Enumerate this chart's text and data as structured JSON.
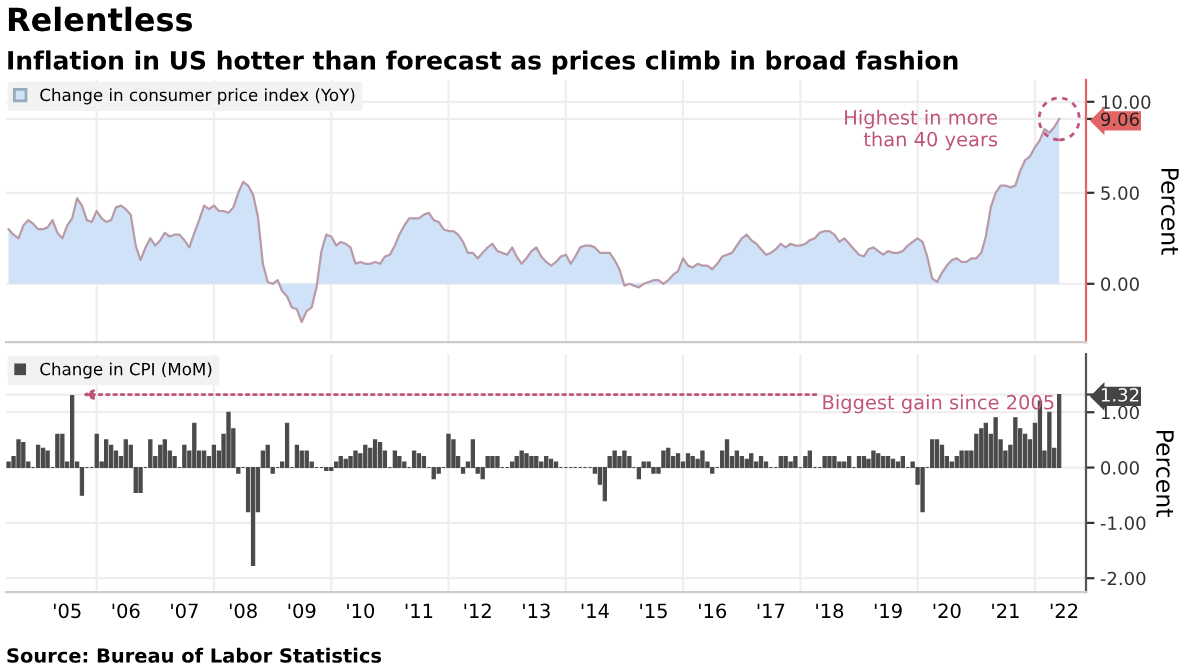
{
  "chart_data": [
    {
      "type": "area",
      "title": "Relentless",
      "subtitle": "Inflation in US hotter than forecast as prices climb in broad fashion",
      "ylabel": "Percent",
      "legend": "top left",
      "grid": true,
      "tick_labels": "y",
      "xlim": [
        "2004-06-15",
        "2022-11-15"
      ],
      "ylim": [
        -3.2,
        11.2
      ],
      "yticks": [
        {
          "value": 0,
          "label": "0.00"
        },
        {
          "value": 5,
          "label": "5.00"
        },
        {
          "value": 10,
          "label": "10.00"
        },
        {
          "value": 9.06,
          "label": "9.06"
        }
      ],
      "xticks": [
        {
          "value": "2006-01",
          "label": null
        },
        {
          "value": "2008-01",
          "label": null
        },
        {
          "value": "2010-01",
          "label": null
        },
        {
          "value": "2012-01",
          "label": null
        },
        {
          "value": "2014-01",
          "label": null
        },
        {
          "value": "2016-01",
          "label": null
        },
        {
          "value": "2018-01",
          "label": null
        },
        {
          "value": "2020-01",
          "label": null
        },
        {
          "value": "2022-01",
          "label": null
        }
      ],
      "annotations": [
        "Highest in more than 40 years"
      ],
      "series": [
        {
          "name": "Change in consumer price index (YoY)",
          "color": "#cfe2f8",
          "x": [
            "2004-07",
            "2004-08",
            "2004-09",
            "2004-10",
            "2004-11",
            "2004-12",
            "2005-01",
            "2005-02",
            "2005-03",
            "2005-04",
            "2005-05",
            "2005-06",
            "2005-07",
            "2005-08",
            "2005-09",
            "2005-10",
            "2005-11",
            "2005-12",
            "2006-01",
            "2006-02",
            "2006-03",
            "2006-04",
            "2006-05",
            "2006-06",
            "2006-07",
            "2006-08",
            "2006-09",
            "2006-10",
            "2006-11",
            "2006-12",
            "2007-01",
            "2007-02",
            "2007-03",
            "2007-04",
            "2007-05",
            "2007-06",
            "2007-07",
            "2007-08",
            "2007-09",
            "2007-10",
            "2007-11",
            "2007-12",
            "2008-01",
            "2008-02",
            "2008-03",
            "2008-04",
            "2008-05",
            "2008-06",
            "2008-07",
            "2008-08",
            "2008-09",
            "2008-10",
            "2008-11",
            "2008-12",
            "2009-01",
            "2009-02",
            "2009-03",
            "2009-04",
            "2009-05",
            "2009-06",
            "2009-07",
            "2009-08",
            "2009-09",
            "2009-10",
            "2009-11",
            "2009-12",
            "2010-01",
            "2010-02",
            "2010-03",
            "2010-04",
            "2010-05",
            "2010-06",
            "2010-07",
            "2010-08",
            "2010-09",
            "2010-10",
            "2010-11",
            "2010-12",
            "2011-01",
            "2011-02",
            "2011-03",
            "2011-04",
            "2011-05",
            "2011-06",
            "2011-07",
            "2011-08",
            "2011-09",
            "2011-10",
            "2011-11",
            "2011-12",
            "2012-01",
            "2012-02",
            "2012-03",
            "2012-04",
            "2012-05",
            "2012-06",
            "2012-07",
            "2012-08",
            "2012-09",
            "2012-10",
            "2012-11",
            "2012-12",
            "2013-01",
            "2013-02",
            "2013-03",
            "2013-04",
            "2013-05",
            "2013-06",
            "2013-07",
            "2013-08",
            "2013-09",
            "2013-10",
            "2013-11",
            "2013-12",
            "2014-01",
            "2014-02",
            "2014-03",
            "2014-04",
            "2014-05",
            "2014-06",
            "2014-07",
            "2014-08",
            "2014-09",
            "2014-10",
            "2014-11",
            "2014-12",
            "2015-01",
            "2015-02",
            "2015-03",
            "2015-04",
            "2015-05",
            "2015-06",
            "2015-07",
            "2015-08",
            "2015-09",
            "2015-10",
            "2015-11",
            "2015-12",
            "2016-01",
            "2016-02",
            "2016-03",
            "2016-04",
            "2016-05",
            "2016-06",
            "2016-07",
            "2016-08",
            "2016-09",
            "2016-10",
            "2016-11",
            "2016-12",
            "2017-01",
            "2017-02",
            "2017-03",
            "2017-04",
            "2017-05",
            "2017-06",
            "2017-07",
            "2017-08",
            "2017-09",
            "2017-10",
            "2017-11",
            "2017-12",
            "2018-01",
            "2018-02",
            "2018-03",
            "2018-04",
            "2018-05",
            "2018-06",
            "2018-07",
            "2018-08",
            "2018-09",
            "2018-10",
            "2018-11",
            "2018-12",
            "2019-01",
            "2019-02",
            "2019-03",
            "2019-04",
            "2019-05",
            "2019-06",
            "2019-07",
            "2019-08",
            "2019-09",
            "2019-10",
            "2019-11",
            "2019-12",
            "2020-01",
            "2020-02",
            "2020-03",
            "2020-04",
            "2020-05",
            "2020-06",
            "2020-07",
            "2020-08",
            "2020-09",
            "2020-10",
            "2020-11",
            "2020-12",
            "2021-01",
            "2021-02",
            "2021-03",
            "2021-04",
            "2021-05",
            "2021-06",
            "2021-07",
            "2021-08",
            "2021-09",
            "2021-10",
            "2021-11",
            "2021-12",
            "2022-01",
            "2022-02",
            "2022-03",
            "2022-04",
            "2022-05",
            "2022-06"
          ],
          "values": [
            3.0,
            2.7,
            2.5,
            3.2,
            3.5,
            3.3,
            3.0,
            3.0,
            3.1,
            3.5,
            2.8,
            2.5,
            3.2,
            3.6,
            4.7,
            4.3,
            3.5,
            3.4,
            4.0,
            3.6,
            3.4,
            3.5,
            4.2,
            4.3,
            4.1,
            3.8,
            2.1,
            1.3,
            2.0,
            2.5,
            2.1,
            2.4,
            2.8,
            2.6,
            2.7,
            2.7,
            2.4,
            2.0,
            2.8,
            3.5,
            4.3,
            4.1,
            4.3,
            4.0,
            4.0,
            3.9,
            4.2,
            5.0,
            5.6,
            5.4,
            4.9,
            3.7,
            1.1,
            0.1,
            0.0,
            0.2,
            -0.4,
            -0.7,
            -1.3,
            -1.4,
            -2.1,
            -1.5,
            -1.3,
            -0.2,
            1.8,
            2.7,
            2.6,
            2.1,
            2.3,
            2.2,
            2.0,
            1.1,
            1.2,
            1.1,
            1.1,
            1.2,
            1.1,
            1.5,
            1.6,
            2.1,
            2.7,
            3.2,
            3.6,
            3.6,
            3.6,
            3.8,
            3.9,
            3.5,
            3.4,
            3.0,
            2.9,
            2.9,
            2.7,
            2.3,
            1.7,
            1.7,
            1.4,
            1.7,
            2.0,
            2.2,
            1.8,
            1.7,
            1.6,
            2.0,
            1.5,
            1.1,
            1.4,
            1.8,
            2.0,
            1.5,
            1.2,
            1.0,
            1.2,
            1.5,
            1.6,
            1.1,
            1.5,
            2.0,
            2.1,
            2.1,
            2.0,
            1.7,
            1.7,
            1.7,
            1.3,
            0.8,
            -0.1,
            0.0,
            -0.1,
            -0.2,
            0.0,
            0.1,
            0.2,
            0.2,
            0.0,
            0.2,
            0.5,
            0.7,
            1.4,
            1.0,
            0.9,
            1.1,
            1.0,
            1.0,
            0.8,
            1.1,
            1.5,
            1.6,
            1.7,
            2.1,
            2.5,
            2.7,
            2.4,
            2.2,
            1.9,
            1.6,
            1.7,
            1.9,
            2.2,
            2.0,
            2.2,
            2.1,
            2.1,
            2.2,
            2.4,
            2.5,
            2.8,
            2.9,
            2.9,
            2.7,
            2.3,
            2.5,
            2.2,
            1.9,
            1.6,
            1.5,
            1.9,
            2.0,
            1.8,
            1.6,
            1.8,
            1.7,
            1.7,
            1.8,
            2.1,
            2.3,
            2.5,
            2.3,
            1.5,
            0.3,
            0.1,
            0.6,
            1.0,
            1.3,
            1.4,
            1.2,
            1.2,
            1.4,
            1.4,
            1.7,
            2.6,
            4.2,
            5.0,
            5.4,
            5.4,
            5.3,
            5.4,
            6.2,
            6.8,
            7.0,
            7.5,
            7.9,
            8.5,
            8.3,
            8.6,
            9.06
          ]
        }
      ]
    },
    {
      "type": "bar",
      "ylabel": "Percent",
      "legend": "top left",
      "grid": true,
      "xlim": [
        "2004-06-15",
        "2022-11-15"
      ],
      "ylim": [
        -2.25,
        2.05
      ],
      "yticks": [
        {
          "value": -2,
          "label": "-2.00"
        },
        {
          "value": -1,
          "label": "-1.00"
        },
        {
          "value": 0,
          "label": "0.00"
        },
        {
          "value": 1,
          "label": "1.00"
        },
        {
          "value": 1.32,
          "label": "1.32"
        }
      ],
      "xticks": [
        {
          "value": "2005-07",
          "label": "'05"
        },
        {
          "value": "2006-07",
          "label": "'06"
        },
        {
          "value": "2007-07",
          "label": "'07"
        },
        {
          "value": "2008-07",
          "label": "'08"
        },
        {
          "value": "2009-07",
          "label": "'09"
        },
        {
          "value": "2010-07",
          "label": "'10"
        },
        {
          "value": "2011-07",
          "label": "'11"
        },
        {
          "value": "2012-07",
          "label": "'12"
        },
        {
          "value": "2013-07",
          "label": "'13"
        },
        {
          "value": "2014-07",
          "label": "'14"
        },
        {
          "value": "2015-07",
          "label": "'15"
        },
        {
          "value": "2016-07",
          "label": "'16"
        },
        {
          "value": "2017-07",
          "label": "'17"
        },
        {
          "value": "2018-07",
          "label": "'18"
        },
        {
          "value": "2019-07",
          "label": "'19"
        },
        {
          "value": "2020-07",
          "label": "'20"
        },
        {
          "value": "2021-07",
          "label": "'21"
        },
        {
          "value": "2022-07",
          "label": "'22"
        },
        {
          "value": "2006-01",
          "label": null
        },
        {
          "value": "2008-01",
          "label": null
        },
        {
          "value": "2010-01",
          "label": null
        },
        {
          "value": "2012-01",
          "label": null
        },
        {
          "value": "2014-01",
          "label": null
        },
        {
          "value": "2016-01",
          "label": null
        },
        {
          "value": "2018-01",
          "label": null
        },
        {
          "value": "2020-01",
          "label": null
        },
        {
          "value": "2022-01",
          "label": null
        }
      ],
      "annotations": [
        {
          "text": "Biggest gain since 2005",
          "x": "2005-09",
          "y": 1.32
        },
        "Source: Bureau of Labor Statistics"
      ],
      "series": [
        {
          "name": "Change in CPI (MoM)",
          "color": "#4a4a4a",
          "x": [
            "2004-07",
            "2004-08",
            "2004-09",
            "2004-10",
            "2004-11",
            "2004-12",
            "2005-01",
            "2005-02",
            "2005-03",
            "2005-04",
            "2005-05",
            "2005-06",
            "2005-07",
            "2005-08",
            "2005-09",
            "2005-10",
            "2005-11",
            "2005-12",
            "2006-01",
            "2006-02",
            "2006-03",
            "2006-04",
            "2006-05",
            "2006-06",
            "2006-07",
            "2006-08",
            "2006-09",
            "2006-10",
            "2006-11",
            "2006-12",
            "2007-01",
            "2007-02",
            "2007-03",
            "2007-04",
            "2007-05",
            "2007-06",
            "2007-07",
            "2007-08",
            "2007-09",
            "2007-10",
            "2007-11",
            "2007-12",
            "2008-01",
            "2008-02",
            "2008-03",
            "2008-04",
            "2008-05",
            "2008-06",
            "2008-07",
            "2008-08",
            "2008-09",
            "2008-10",
            "2008-11",
            "2008-12",
            "2009-01",
            "2009-02",
            "2009-03",
            "2009-04",
            "2009-05",
            "2009-06",
            "2009-07",
            "2009-08",
            "2009-09",
            "2009-10",
            "2009-11",
            "2009-12",
            "2010-01",
            "2010-02",
            "2010-03",
            "2010-04",
            "2010-05",
            "2010-06",
            "2010-07",
            "2010-08",
            "2010-09",
            "2010-10",
            "2010-11",
            "2010-12",
            "2011-01",
            "2011-02",
            "2011-03",
            "2011-04",
            "2011-05",
            "2011-06",
            "2011-07",
            "2011-08",
            "2011-09",
            "2011-10",
            "2011-11",
            "2011-12",
            "2012-01",
            "2012-02",
            "2012-03",
            "2012-04",
            "2012-05",
            "2012-06",
            "2012-07",
            "2012-08",
            "2012-09",
            "2012-10",
            "2012-11",
            "2012-12",
            "2013-01",
            "2013-02",
            "2013-03",
            "2013-04",
            "2013-05",
            "2013-06",
            "2013-07",
            "2013-08",
            "2013-09",
            "2013-10",
            "2013-11",
            "2013-12",
            "2014-01",
            "2014-02",
            "2014-03",
            "2014-04",
            "2014-05",
            "2014-06",
            "2014-07",
            "2014-08",
            "2014-09",
            "2014-10",
            "2014-11",
            "2014-12",
            "2015-01",
            "2015-02",
            "2015-03",
            "2015-04",
            "2015-05",
            "2015-06",
            "2015-07",
            "2015-08",
            "2015-09",
            "2015-10",
            "2015-11",
            "2015-12",
            "2016-01",
            "2016-02",
            "2016-03",
            "2016-04",
            "2016-05",
            "2016-06",
            "2016-07",
            "2016-08",
            "2016-09",
            "2016-10",
            "2016-11",
            "2016-12",
            "2017-01",
            "2017-02",
            "2017-03",
            "2017-04",
            "2017-05",
            "2017-06",
            "2017-07",
            "2017-08",
            "2017-09",
            "2017-10",
            "2017-11",
            "2017-12",
            "2018-01",
            "2018-02",
            "2018-03",
            "2018-04",
            "2018-05",
            "2018-06",
            "2018-07",
            "2018-08",
            "2018-09",
            "2018-10",
            "2018-11",
            "2018-12",
            "2019-01",
            "2019-02",
            "2019-03",
            "2019-04",
            "2019-05",
            "2019-06",
            "2019-07",
            "2019-08",
            "2019-09",
            "2019-10",
            "2019-11",
            "2019-12",
            "2020-01",
            "2020-02",
            "2020-03",
            "2020-04",
            "2020-05",
            "2020-06",
            "2020-07",
            "2020-08",
            "2020-09",
            "2020-10",
            "2020-11",
            "2020-12",
            "2021-01",
            "2021-02",
            "2021-03",
            "2021-04",
            "2021-05",
            "2021-06",
            "2021-07",
            "2021-08",
            "2021-09",
            "2021-10",
            "2021-11",
            "2021-12",
            "2022-01",
            "2022-02",
            "2022-03",
            "2022-04",
            "2022-05",
            "2022-06"
          ],
          "values": [
            0.1,
            0.2,
            0.5,
            0.45,
            0.1,
            0.0,
            0.4,
            0.35,
            0.3,
            0.0,
            0.6,
            0.6,
            0.1,
            1.3,
            0.1,
            -0.5,
            0.0,
            0.0,
            0.6,
            0.1,
            0.5,
            0.4,
            0.3,
            0.2,
            0.5,
            0.4,
            -0.45,
            -0.45,
            0.0,
            0.5,
            0.2,
            0.4,
            0.5,
            0.3,
            0.2,
            0.0,
            0.4,
            0.3,
            0.8,
            0.3,
            0.3,
            0.2,
            0.4,
            0.3,
            0.6,
            1.0,
            0.7,
            -0.1,
            0.0,
            -0.8,
            -1.77,
            -0.8,
            0.3,
            0.4,
            -0.1,
            0.0,
            0.1,
            0.8,
            0.0,
            0.4,
            0.3,
            0.3,
            0.1,
            0.0,
            0.0,
            -0.05,
            -0.05,
            0.1,
            0.2,
            0.15,
            0.2,
            0.3,
            0.25,
            0.4,
            0.35,
            0.5,
            0.45,
            0.3,
            0.0,
            0.3,
            0.2,
            0.1,
            0.0,
            0.3,
            0.25,
            0.2,
            0.0,
            -0.2,
            -0.1,
            0.0,
            0.6,
            0.5,
            0.2,
            -0.1,
            0.1,
            0.5,
            -0.1,
            -0.2,
            0.2,
            0.2,
            0.2,
            0.0,
            0.0,
            0.1,
            0.2,
            0.3,
            0.25,
            0.2,
            0.2,
            0.1,
            0.2,
            0.15,
            0.1,
            0.0,
            0.0,
            0.0,
            0.0,
            0.0,
            0.0,
            0.0,
            -0.1,
            -0.3,
            -0.6,
            0.2,
            0.3,
            0.2,
            0.3,
            0.2,
            0.0,
            -0.2,
            0.1,
            0.1,
            -0.1,
            -0.1,
            0.3,
            0.35,
            0.2,
            0.25,
            0.1,
            0.25,
            0.2,
            0.15,
            0.3,
            0.1,
            -0.1,
            0.0,
            0.3,
            0.5,
            0.2,
            0.3,
            0.2,
            0.15,
            0.25,
            0.1,
            0.2,
            0.1,
            0.0,
            0.0,
            0.2,
            0.2,
            0.1,
            0.2,
            0.0,
            0.2,
            0.3,
            0.0,
            0.0,
            0.2,
            0.2,
            0.2,
            0.1,
            0.1,
            0.2,
            0.0,
            0.2,
            0.2,
            0.15,
            0.3,
            0.25,
            0.2,
            0.2,
            0.15,
            0.1,
            0.2,
            0.0,
            0.1,
            -0.3,
            -0.8,
            0.0,
            0.5,
            0.5,
            0.4,
            0.2,
            0.1,
            0.2,
            0.3,
            0.3,
            0.3,
            0.6,
            0.7,
            0.8,
            0.6,
            0.9,
            0.5,
            0.3,
            0.4,
            0.9,
            0.7,
            0.6,
            0.5,
            0.8,
            1.2,
            0.3,
            1.0,
            0.35,
            1.32
          ]
        }
      ]
    }
  ]
}
